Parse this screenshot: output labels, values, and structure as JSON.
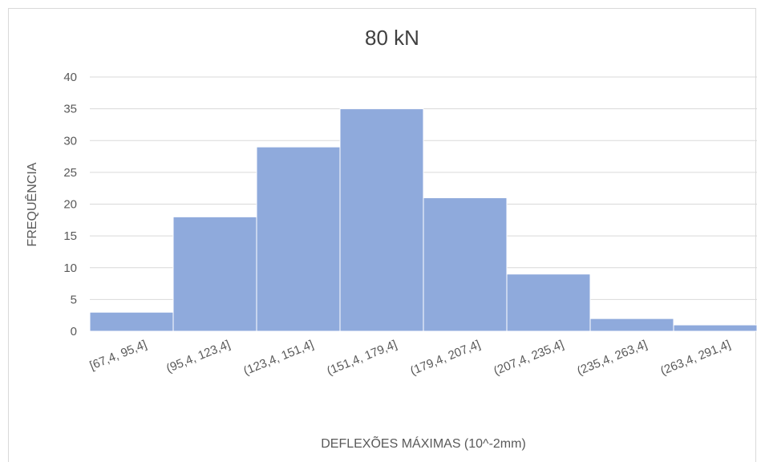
{
  "chart_data": {
    "type": "bar",
    "title": "80 kN",
    "xlabel": "DEFLEXÕES MÁXIMAS (10^-2mm)",
    "ylabel": "FREQUÊNCIA",
    "categories": [
      "[67,4, 95,4]",
      "(95,4, 123,4]",
      "(123,4, 151,4]",
      "(151,4, 179,4]",
      "(179,4, 207,4]",
      "(207,4, 235,4]",
      "(235,4, 263,4]",
      "(263,4, 291,4]"
    ],
    "values": [
      3,
      18,
      29,
      35,
      21,
      9,
      2,
      1
    ],
    "ylim": [
      0,
      40
    ],
    "yticks": [
      0,
      5,
      10,
      15,
      20,
      25,
      30,
      35,
      40
    ],
    "grid": true,
    "legend": "none",
    "bar_color": "#8faadc",
    "bar_edge_color": "#ffffff",
    "grid_color": "#d9d9d9"
  }
}
